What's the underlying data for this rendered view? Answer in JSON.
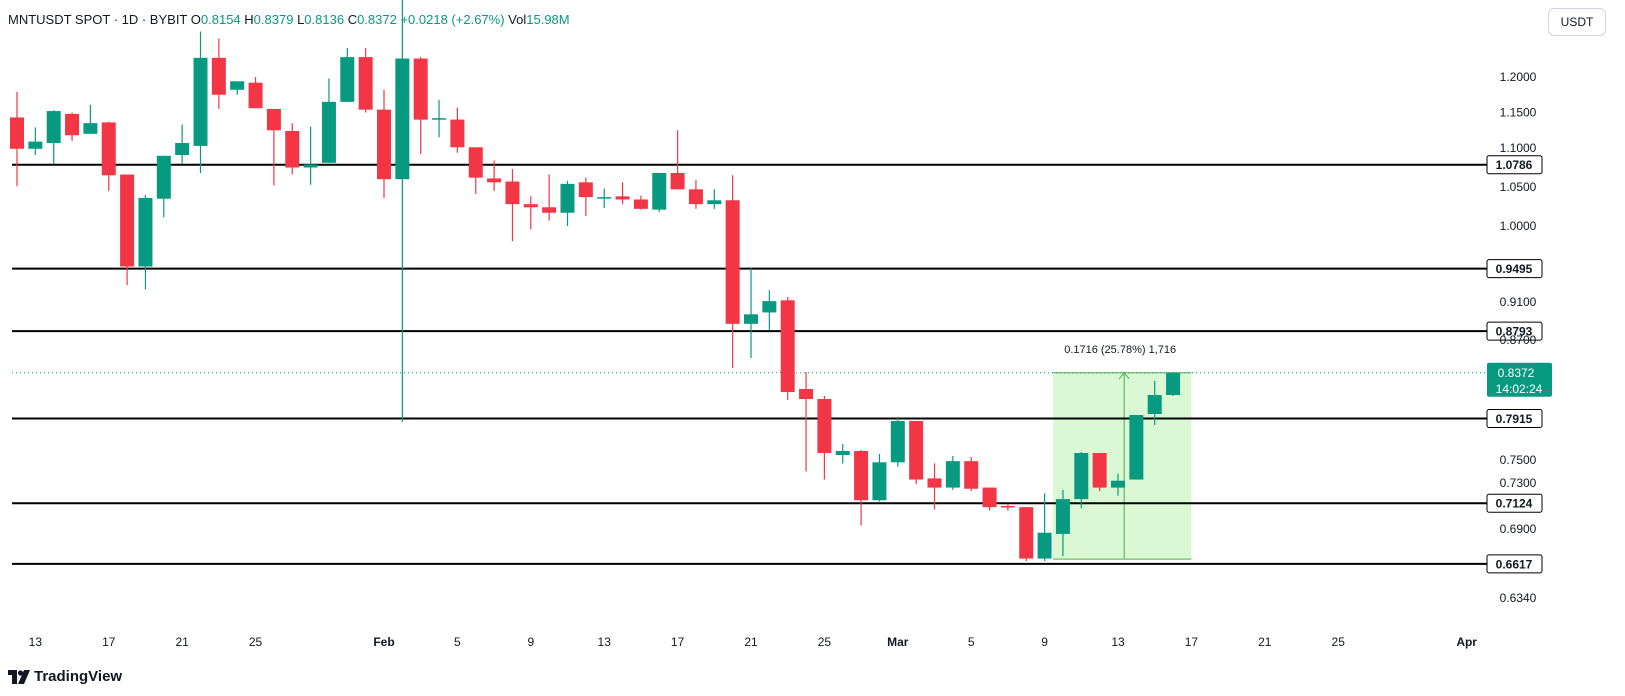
{
  "header": {
    "symbol": "MNTUSDT SPOT · 1D · BYBIT",
    "o_label": "O",
    "o_value": "0.8154",
    "h_label": "H",
    "h_value": "0.8379",
    "l_label": "L",
    "l_value": "0.8136",
    "c_label": "C",
    "c_value": "0.8372",
    "change": "+0.0218 (+2.67%)",
    "vol_label": "Vol",
    "vol_value": "15.98M"
  },
  "currency_button": "USDT",
  "footer": {
    "brand": "TradingView"
  },
  "colors": {
    "up": "#089981",
    "down": "#f23645",
    "line": "#000000",
    "measure_fill": "#ccf5c4",
    "measure_stroke": "#4caf50"
  },
  "chart_data": {
    "type": "candlestick",
    "y_ticks": [
      "1.2000",
      "1.1500",
      "1.1000",
      "1.0500",
      "1.0000",
      "0.9100",
      "0.8700",
      "0.7500",
      "0.7300",
      "0.6900",
      "0.6340"
    ],
    "x_ticks": [
      {
        "day": 13,
        "label": "13"
      },
      {
        "day": 17,
        "label": "17"
      },
      {
        "day": 21,
        "label": "21"
      },
      {
        "day": 25,
        "label": "25"
      },
      {
        "day": 32,
        "label": "Feb"
      },
      {
        "day": 36,
        "label": "5"
      },
      {
        "day": 40,
        "label": "9"
      },
      {
        "day": 44,
        "label": "13"
      },
      {
        "day": 48,
        "label": "17"
      },
      {
        "day": 52,
        "label": "21"
      },
      {
        "day": 56,
        "label": "25"
      },
      {
        "day": 60,
        "label": "Mar"
      },
      {
        "day": 64,
        "label": "5"
      },
      {
        "day": 68,
        "label": "9"
      },
      {
        "day": 72,
        "label": "13"
      },
      {
        "day": 76,
        "label": "17"
      },
      {
        "day": 80,
        "label": "21"
      },
      {
        "day": 84,
        "label": "25"
      },
      {
        "day": 91,
        "label": "Apr"
      }
    ],
    "horizontal_levels": [
      "1.0786",
      "0.9495",
      "0.8793",
      "0.7915",
      "0.7124",
      "0.6617"
    ],
    "current_price": {
      "value": "0.8372",
      "countdown": "14:02:24"
    },
    "measure": {
      "label": "0.1716 (25.78%) 1,716",
      "from_day": 69,
      "to_day": 76,
      "low": 0.6656,
      "high": 0.8372
    },
    "candles": [
      {
        "day": 12,
        "o": 1.143,
        "h": 1.179,
        "l": 1.051,
        "c": 1.099
      },
      {
        "day": 13,
        "o": 1.099,
        "h": 1.129,
        "l": 1.091,
        "c": 1.109
      },
      {
        "day": 14,
        "o": 1.107,
        "h": 1.153,
        "l": 1.08,
        "c": 1.152
      },
      {
        "day": 15,
        "o": 1.148,
        "h": 1.15,
        "l": 1.11,
        "c": 1.118
      },
      {
        "day": 16,
        "o": 1.12,
        "h": 1.161,
        "l": 1.12,
        "c": 1.135
      },
      {
        "day": 17,
        "o": 1.136,
        "h": 1.137,
        "l": 1.045,
        "c": 1.065
      },
      {
        "day": 18,
        "o": 1.066,
        "h": 1.065,
        "l": 0.93,
        "c": 0.952
      },
      {
        "day": 19,
        "o": 0.952,
        "h": 1.04,
        "l": 0.925,
        "c": 1.036
      },
      {
        "day": 20,
        "o": 1.035,
        "h": 1.09,
        "l": 1.011,
        "c": 1.09
      },
      {
        "day": 21,
        "o": 1.091,
        "h": 1.133,
        "l": 1.08,
        "c": 1.107
      },
      {
        "day": 22,
        "o": 1.103,
        "h": 1.264,
        "l": 1.068,
        "c": 1.227
      },
      {
        "day": 23,
        "o": 1.227,
        "h": 1.254,
        "l": 1.155,
        "c": 1.175
      },
      {
        "day": 24,
        "o": 1.182,
        "h": 1.193,
        "l": 1.175,
        "c": 1.194
      },
      {
        "day": 25,
        "o": 1.192,
        "h": 1.2,
        "l": 1.158,
        "c": 1.156
      },
      {
        "day": 26,
        "o": 1.155,
        "h": 1.155,
        "l": 1.052,
        "c": 1.125
      },
      {
        "day": 27,
        "o": 1.124,
        "h": 1.135,
        "l": 1.066,
        "c": 1.075
      },
      {
        "day": 28,
        "o": 1.075,
        "h": 1.13,
        "l": 1.053,
        "c": 1.079
      },
      {
        "day": 29,
        "o": 1.081,
        "h": 1.198,
        "l": 1.081,
        "c": 1.165
      },
      {
        "day": 30,
        "o": 1.165,
        "h": 1.241,
        "l": 1.165,
        "c": 1.228
      },
      {
        "day": 31,
        "o": 1.228,
        "h": 1.241,
        "l": 1.15,
        "c": 1.154
      },
      {
        "day": 32,
        "o": 1.154,
        "h": 1.182,
        "l": 1.036,
        "c": 1.06
      },
      {
        "day": 33,
        "o": 1.06,
        "h": 1.321,
        "l": 0.788,
        "c": 1.226
      },
      {
        "day": 34,
        "o": 1.226,
        "h": 1.228,
        "l": 1.092,
        "c": 1.14
      },
      {
        "day": 35,
        "o": 1.142,
        "h": 1.168,
        "l": 1.115,
        "c": 1.142
      },
      {
        "day": 36,
        "o": 1.14,
        "h": 1.157,
        "l": 1.094,
        "c": 1.101
      },
      {
        "day": 37,
        "o": 1.101,
        "h": 1.101,
        "l": 1.041,
        "c": 1.062
      },
      {
        "day": 38,
        "o": 1.061,
        "h": 1.084,
        "l": 1.045,
        "c": 1.056
      },
      {
        "day": 39,
        "o": 1.057,
        "h": 1.073,
        "l": 0.982,
        "c": 1.028
      },
      {
        "day": 40,
        "o": 1.028,
        "h": 1.038,
        "l": 0.996,
        "c": 1.024
      },
      {
        "day": 41,
        "o": 1.024,
        "h": 1.066,
        "l": 1.007,
        "c": 1.017
      },
      {
        "day": 42,
        "o": 1.017,
        "h": 1.058,
        "l": 1.0,
        "c": 1.054
      },
      {
        "day": 43,
        "o": 1.056,
        "h": 1.062,
        "l": 1.013,
        "c": 1.037
      },
      {
        "day": 44,
        "o": 1.037,
        "h": 1.048,
        "l": 1.023,
        "c": 1.037
      },
      {
        "day": 45,
        "o": 1.038,
        "h": 1.056,
        "l": 1.028,
        "c": 1.034
      },
      {
        "day": 46,
        "o": 1.034,
        "h": 1.039,
        "l": 1.021,
        "c": 1.022
      },
      {
        "day": 47,
        "o": 1.021,
        "h": 1.068,
        "l": 1.018,
        "c": 1.068
      },
      {
        "day": 48,
        "o": 1.068,
        "h": 1.125,
        "l": 1.047,
        "c": 1.047
      },
      {
        "day": 49,
        "o": 1.047,
        "h": 1.059,
        "l": 1.022,
        "c": 1.028
      },
      {
        "day": 50,
        "o": 1.028,
        "h": 1.047,
        "l": 1.022,
        "c": 1.033
      },
      {
        "day": 51,
        "o": 1.033,
        "h": 1.065,
        "l": 0.842,
        "c": 0.887
      },
      {
        "day": 52,
        "o": 0.887,
        "h": 0.95,
        "l": 0.852,
        "c": 0.897
      },
      {
        "day": 53,
        "o": 0.899,
        "h": 0.924,
        "l": 0.88,
        "c": 0.911
      },
      {
        "day": 54,
        "o": 0.912,
        "h": 0.916,
        "l": 0.81,
        "c": 0.818
      },
      {
        "day": 55,
        "o": 0.821,
        "h": 0.838,
        "l": 0.74,
        "c": 0.811
      },
      {
        "day": 56,
        "o": 0.811,
        "h": 0.814,
        "l": 0.733,
        "c": 0.757
      },
      {
        "day": 57,
        "o": 0.755,
        "h": 0.766,
        "l": 0.747,
        "c": 0.759
      },
      {
        "day": 58,
        "o": 0.759,
        "h": 0.76,
        "l": 0.693,
        "c": 0.715
      },
      {
        "day": 59,
        "o": 0.715,
        "h": 0.756,
        "l": 0.714,
        "c": 0.748
      },
      {
        "day": 60,
        "o": 0.748,
        "h": 0.793,
        "l": 0.744,
        "c": 0.789
      },
      {
        "day": 61,
        "o": 0.789,
        "h": 0.789,
        "l": 0.729,
        "c": 0.733
      },
      {
        "day": 62,
        "o": 0.734,
        "h": 0.747,
        "l": 0.707,
        "c": 0.726
      },
      {
        "day": 63,
        "o": 0.726,
        "h": 0.754,
        "l": 0.724,
        "c": 0.749
      },
      {
        "day": 64,
        "o": 0.749,
        "h": 0.753,
        "l": 0.723,
        "c": 0.725
      },
      {
        "day": 65,
        "o": 0.726,
        "h": 0.726,
        "l": 0.706,
        "c": 0.709
      },
      {
        "day": 66,
        "o": 0.71,
        "h": 0.712,
        "l": 0.706,
        "c": 0.709
      },
      {
        "day": 67,
        "o": 0.709,
        "h": 0.709,
        "l": 0.664,
        "c": 0.666
      },
      {
        "day": 68,
        "o": 0.666,
        "h": 0.721,
        "l": 0.664,
        "c": 0.687
      },
      {
        "day": 69,
        "o": 0.686,
        "h": 0.724,
        "l": 0.668,
        "c": 0.716
      },
      {
        "day": 70,
        "o": 0.716,
        "h": 0.758,
        "l": 0.708,
        "c": 0.757
      },
      {
        "day": 71,
        "o": 0.757,
        "h": 0.757,
        "l": 0.723,
        "c": 0.726
      },
      {
        "day": 72,
        "o": 0.726,
        "h": 0.738,
        "l": 0.719,
        "c": 0.732
      },
      {
        "day": 73,
        "o": 0.733,
        "h": 0.795,
        "l": 0.733,
        "c": 0.795
      },
      {
        "day": 74,
        "o": 0.796,
        "h": 0.829,
        "l": 0.785,
        "c": 0.815
      },
      {
        "day": 75,
        "o": 0.815,
        "h": 0.838,
        "l": 0.814,
        "c": 0.837
      }
    ]
  }
}
